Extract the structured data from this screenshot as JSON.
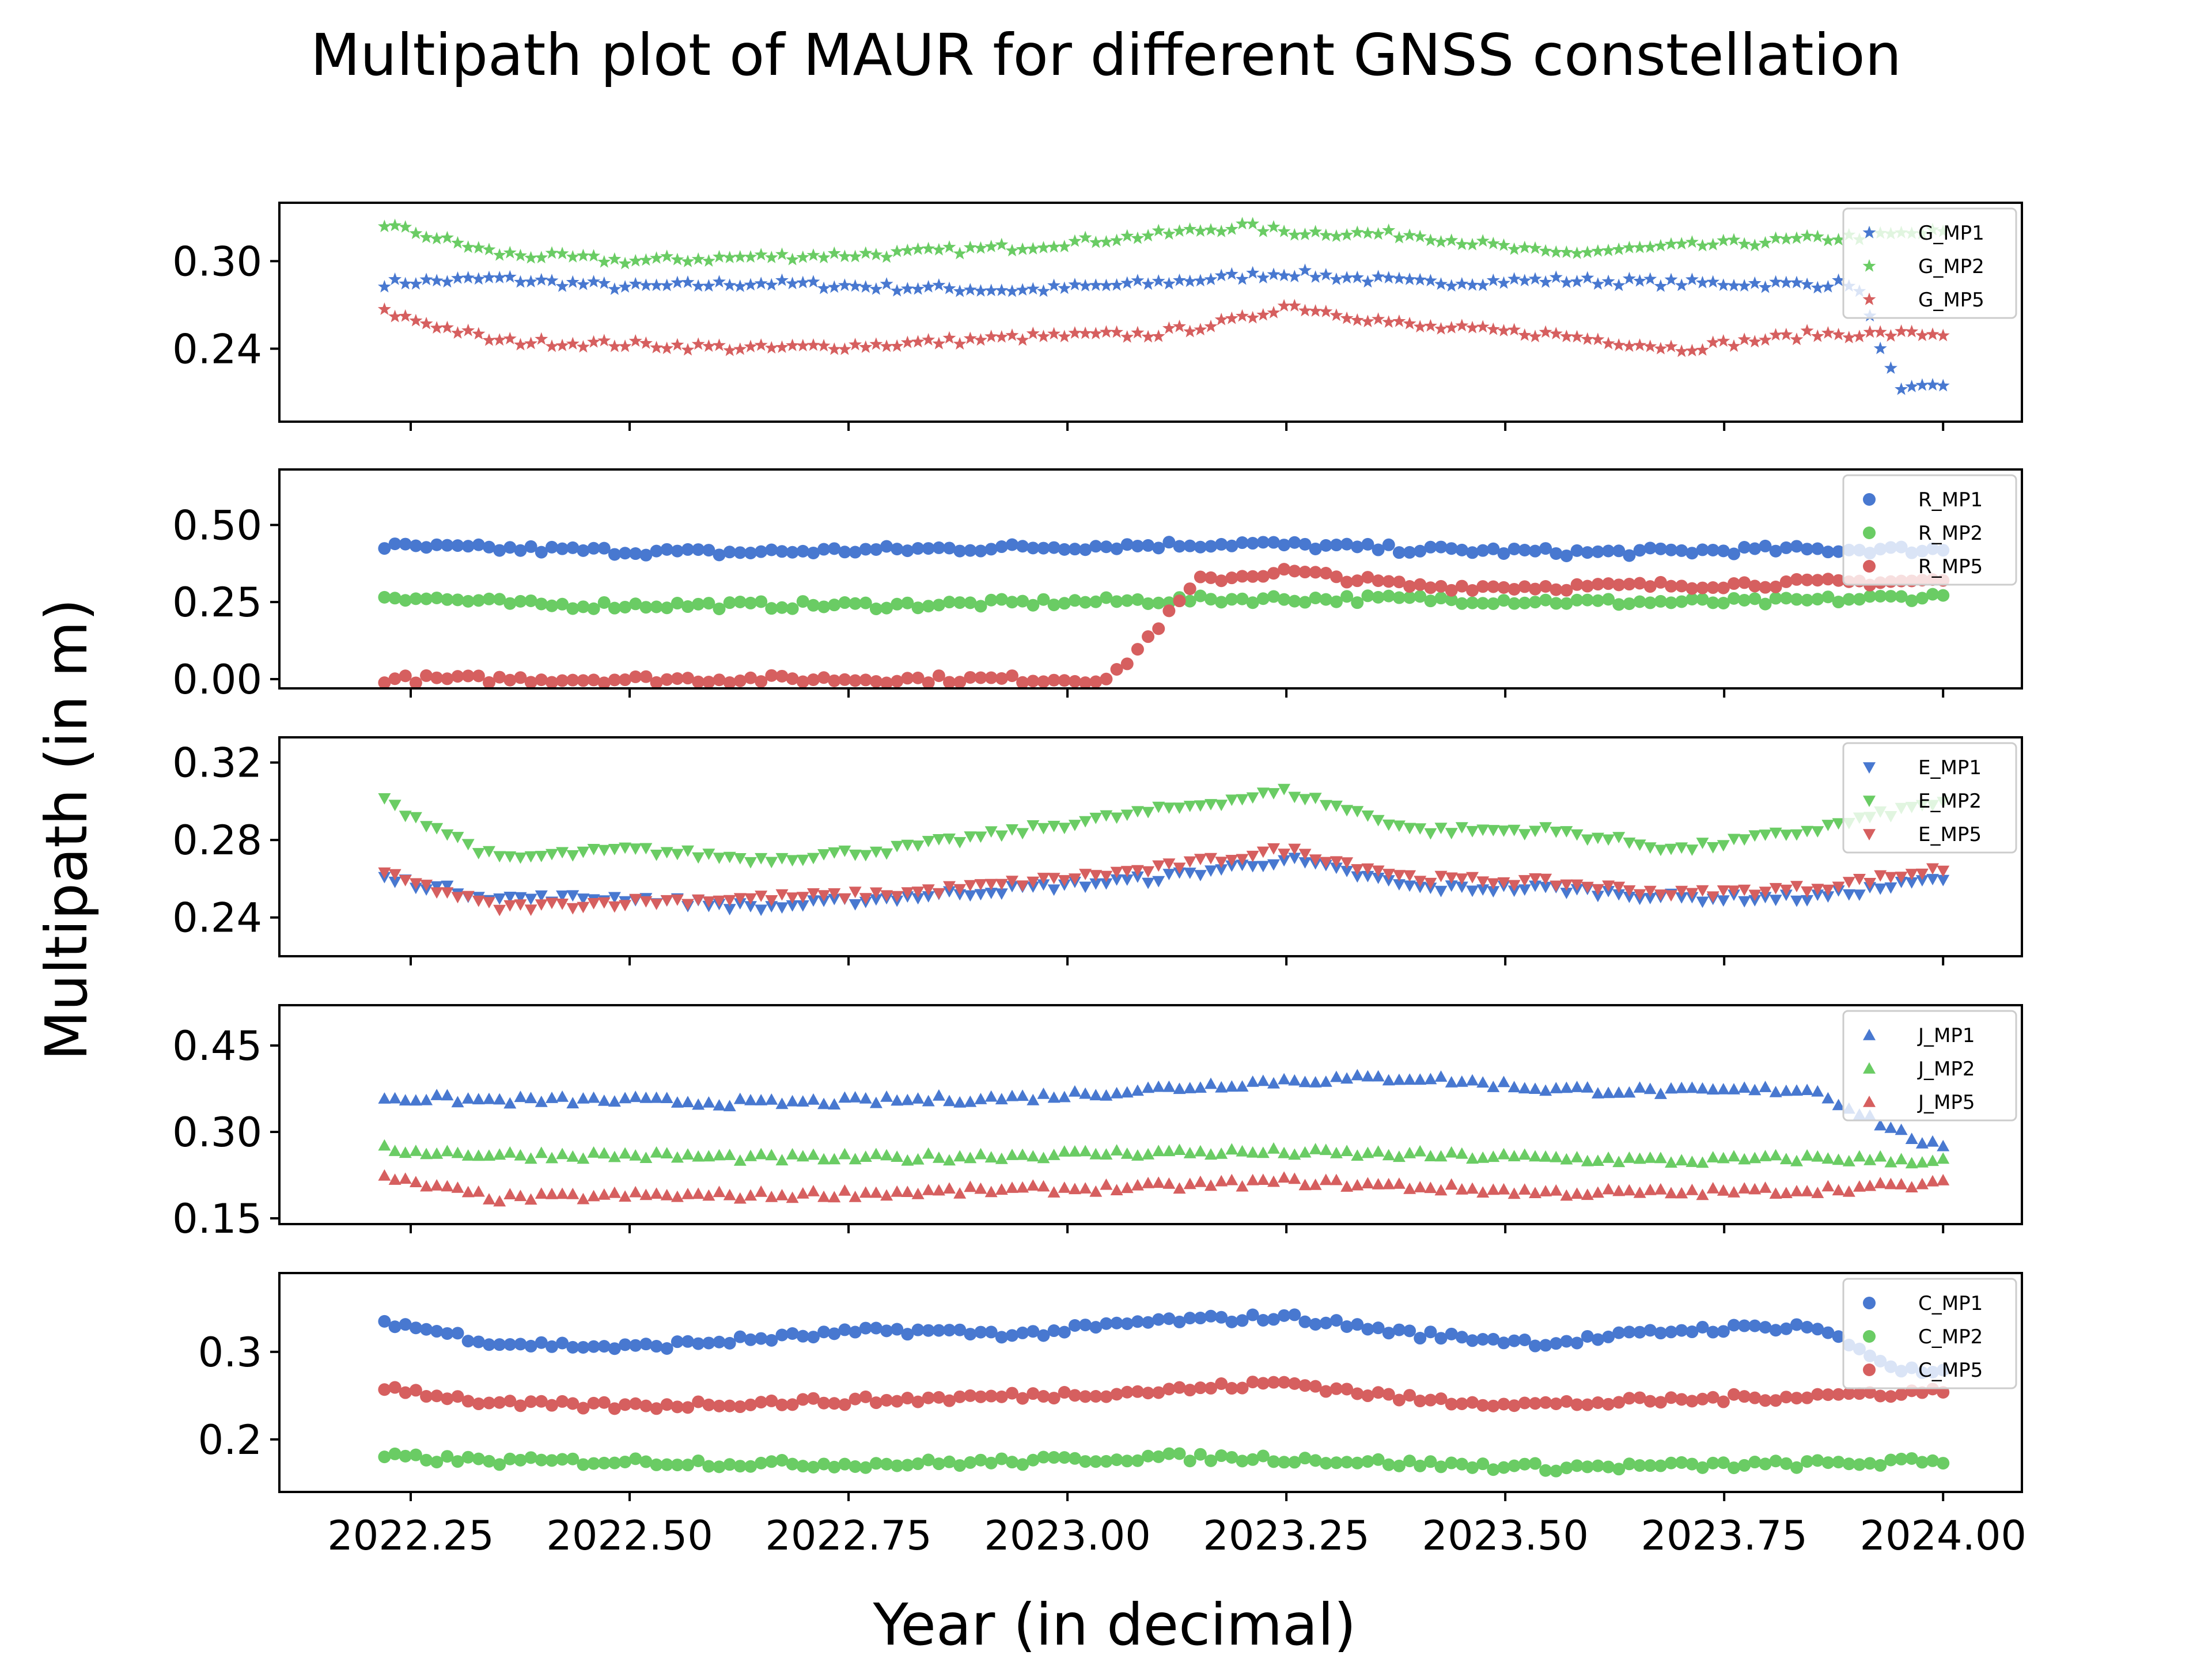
{
  "chart_data": {
    "type": "scatter",
    "title": "Multipath plot of MAUR for different GNSS constellation",
    "xlabel": "Year (in decimal)",
    "ylabel": "Multipath (in m)",
    "xlim": [
      2022.1,
      2024.09
    ],
    "xticks": [
      "2022.25",
      "2022.50",
      "2022.75",
      "2023.00",
      "2023.25",
      "2023.50",
      "2023.75",
      "2024.00"
    ],
    "grid": false,
    "legend_placement": "upper right",
    "colors": {
      "MP1": "#4878d0",
      "MP2": "#6acc64",
      "MP5": "#d65f5f"
    },
    "panels": [
      {
        "constellation": "G",
        "marker": "star",
        "ylim": [
          0.19,
          0.34
        ],
        "yticks": [
          "0.30",
          "0.24"
        ],
        "series": [
          {
            "name": "G_MP1",
            "x": [
              2022.22,
              2022.35,
              2022.5,
              2022.65,
              2022.8,
              2022.95,
              2023.1,
              2023.25,
              2023.4,
              2023.55,
              2023.7,
              2023.85,
              2023.9,
              2023.95,
              2024.0
            ],
            "values": [
              0.285,
              0.288,
              0.282,
              0.285,
              0.282,
              0.28,
              0.285,
              0.292,
              0.285,
              0.287,
              0.285,
              0.284,
              0.285,
              0.21,
              0.215
            ]
          },
          {
            "name": "G_MP2",
            "x": [
              2022.22,
              2022.35,
              2022.5,
              2022.65,
              2022.8,
              2022.95,
              2023.1,
              2023.2,
              2023.25,
              2023.4,
              2023.55,
              2023.7,
              2023.85,
              2024.0
            ],
            "values": [
              0.325,
              0.305,
              0.3,
              0.303,
              0.305,
              0.31,
              0.318,
              0.324,
              0.32,
              0.318,
              0.305,
              0.31,
              0.315,
              0.32
            ]
          },
          {
            "name": "G_MP5",
            "x": [
              2022.22,
              2022.35,
              2022.5,
              2022.65,
              2022.8,
              2022.95,
              2023.1,
              2023.2,
              2023.25,
              2023.4,
              2023.55,
              2023.7,
              2023.85,
              2024.0
            ],
            "values": [
              0.265,
              0.245,
              0.243,
              0.24,
              0.243,
              0.248,
              0.25,
              0.26,
              0.27,
              0.255,
              0.25,
              0.24,
              0.25,
              0.25
            ]
          }
        ]
      },
      {
        "constellation": "R",
        "marker": "circle",
        "ylim": [
          -0.03,
          0.68
        ],
        "yticks": [
          "0.50",
          "0.25",
          "0.00"
        ],
        "series": [
          {
            "name": "R_MP1",
            "x": [
              2022.22,
              2022.4,
              2022.6,
              2022.8,
              2023.0,
              2023.2,
              2023.4,
              2023.6,
              2023.8,
              2024.0
            ],
            "values": [
              0.43,
              0.42,
              0.41,
              0.42,
              0.43,
              0.44,
              0.42,
              0.41,
              0.42,
              0.42
            ]
          },
          {
            "name": "R_MP2",
            "x": [
              2022.22,
              2022.4,
              2022.6,
              2022.8,
              2023.0,
              2023.2,
              2023.4,
              2023.6,
              2023.8,
              2024.0
            ],
            "values": [
              0.27,
              0.24,
              0.24,
              0.24,
              0.25,
              0.26,
              0.26,
              0.25,
              0.25,
              0.27
            ]
          },
          {
            "name": "R_MP5",
            "x": [
              2022.22,
              2022.4,
              2022.6,
              2022.8,
              2022.9,
              2022.95,
              2023.0,
              2023.05,
              2023.15,
              2023.25,
              2023.4,
              2023.6,
              2023.8,
              2024.0
            ],
            "values": [
              0.0,
              0.0,
              0.0,
              0.0,
              0.0,
              0.0,
              0.0,
              0.0,
              0.32,
              0.35,
              0.3,
              0.3,
              0.31,
              0.32
            ]
          }
        ]
      },
      {
        "constellation": "E",
        "marker": "triangle-down",
        "ylim": [
          0.22,
          0.333
        ],
        "yticks": [
          "0.32",
          "0.28",
          "0.24"
        ],
        "series": [
          {
            "name": "E_MP1",
            "x": [
              2022.22,
              2022.35,
              2022.5,
              2022.65,
              2022.8,
              2022.95,
              2023.1,
              2023.25,
              2023.4,
              2023.55,
              2023.7,
              2023.85,
              2024.0
            ],
            "values": [
              0.26,
              0.25,
              0.25,
              0.245,
              0.25,
              0.255,
              0.26,
              0.27,
              0.255,
              0.255,
              0.25,
              0.25,
              0.26
            ]
          },
          {
            "name": "E_MP2",
            "x": [
              2022.22,
              2022.35,
              2022.5,
              2022.65,
              2022.8,
              2022.95,
              2023.1,
              2023.25,
              2023.4,
              2023.55,
              2023.7,
              2023.85,
              2024.0
            ],
            "values": [
              0.3,
              0.27,
              0.275,
              0.27,
              0.275,
              0.285,
              0.295,
              0.305,
              0.285,
              0.285,
              0.275,
              0.285,
              0.3
            ]
          },
          {
            "name": "E_MP5",
            "x": [
              2022.22,
              2022.35,
              2022.5,
              2022.65,
              2022.8,
              2022.95,
              2023.1,
              2023.25,
              2023.4,
              2023.55,
              2023.7,
              2023.85,
              2024.0
            ],
            "values": [
              0.262,
              0.245,
              0.248,
              0.25,
              0.252,
              0.258,
              0.265,
              0.275,
              0.26,
              0.258,
              0.252,
              0.255,
              0.265
            ]
          }
        ]
      },
      {
        "constellation": "J",
        "marker": "triangle-up",
        "ylim": [
          0.14,
          0.52
        ],
        "yticks": [
          "0.45",
          "0.30",
          "0.15"
        ],
        "series": [
          {
            "name": "J_MP1",
            "x": [
              2022.22,
              2022.35,
              2022.5,
              2022.65,
              2022.8,
              2022.95,
              2023.1,
              2023.25,
              2023.4,
              2023.55,
              2023.7,
              2023.85,
              2023.95,
              2024.0
            ],
            "values": [
              0.36,
              0.355,
              0.355,
              0.35,
              0.355,
              0.36,
              0.375,
              0.39,
              0.395,
              0.375,
              0.37,
              0.375,
              0.3,
              0.27
            ]
          },
          {
            "name": "J_MP2",
            "x": [
              2022.22,
              2022.35,
              2022.5,
              2022.65,
              2022.8,
              2022.95,
              2023.1,
              2023.25,
              2023.4,
              2023.55,
              2023.7,
              2023.85,
              2024.0
            ],
            "values": [
              0.27,
              0.26,
              0.26,
              0.255,
              0.255,
              0.26,
              0.265,
              0.265,
              0.26,
              0.255,
              0.25,
              0.255,
              0.25
            ]
          },
          {
            "name": "J_MP5",
            "x": [
              2022.22,
              2022.35,
              2022.5,
              2022.65,
              2022.8,
              2022.95,
              2023.1,
              2023.25,
              2023.4,
              2023.55,
              2023.7,
              2023.85,
              2024.0
            ],
            "values": [
              0.22,
              0.185,
              0.19,
              0.19,
              0.195,
              0.2,
              0.205,
              0.215,
              0.205,
              0.195,
              0.195,
              0.2,
              0.21
            ]
          }
        ]
      },
      {
        "constellation": "C",
        "marker": "circle",
        "ylim": [
          0.14,
          0.39
        ],
        "yticks": [
          "0.3",
          "0.2"
        ],
        "series": [
          {
            "name": "C_MP1",
            "x": [
              2022.22,
              2022.35,
              2022.5,
              2022.65,
              2022.8,
              2022.95,
              2023.1,
              2023.25,
              2023.4,
              2023.55,
              2023.7,
              2023.85,
              2023.95,
              2024.0
            ],
            "values": [
              0.335,
              0.31,
              0.305,
              0.315,
              0.325,
              0.32,
              0.335,
              0.34,
              0.32,
              0.31,
              0.325,
              0.33,
              0.28,
              0.275
            ]
          },
          {
            "name": "C_MP2",
            "x": [
              2022.22,
              2022.35,
              2022.5,
              2022.65,
              2022.8,
              2022.95,
              2023.1,
              2023.25,
              2023.4,
              2023.55,
              2023.7,
              2023.85,
              2024.0
            ],
            "values": [
              0.18,
              0.175,
              0.175,
              0.172,
              0.172,
              0.175,
              0.18,
              0.178,
              0.172,
              0.168,
              0.17,
              0.172,
              0.175
            ]
          },
          {
            "name": "C_MP5",
            "x": [
              2022.22,
              2022.35,
              2022.5,
              2022.65,
              2022.8,
              2022.95,
              2023.1,
              2023.25,
              2023.4,
              2023.55,
              2023.7,
              2023.85,
              2024.0
            ],
            "values": [
              0.26,
              0.24,
              0.238,
              0.242,
              0.245,
              0.25,
              0.255,
              0.265,
              0.245,
              0.24,
              0.245,
              0.25,
              0.255
            ]
          }
        ]
      }
    ]
  }
}
